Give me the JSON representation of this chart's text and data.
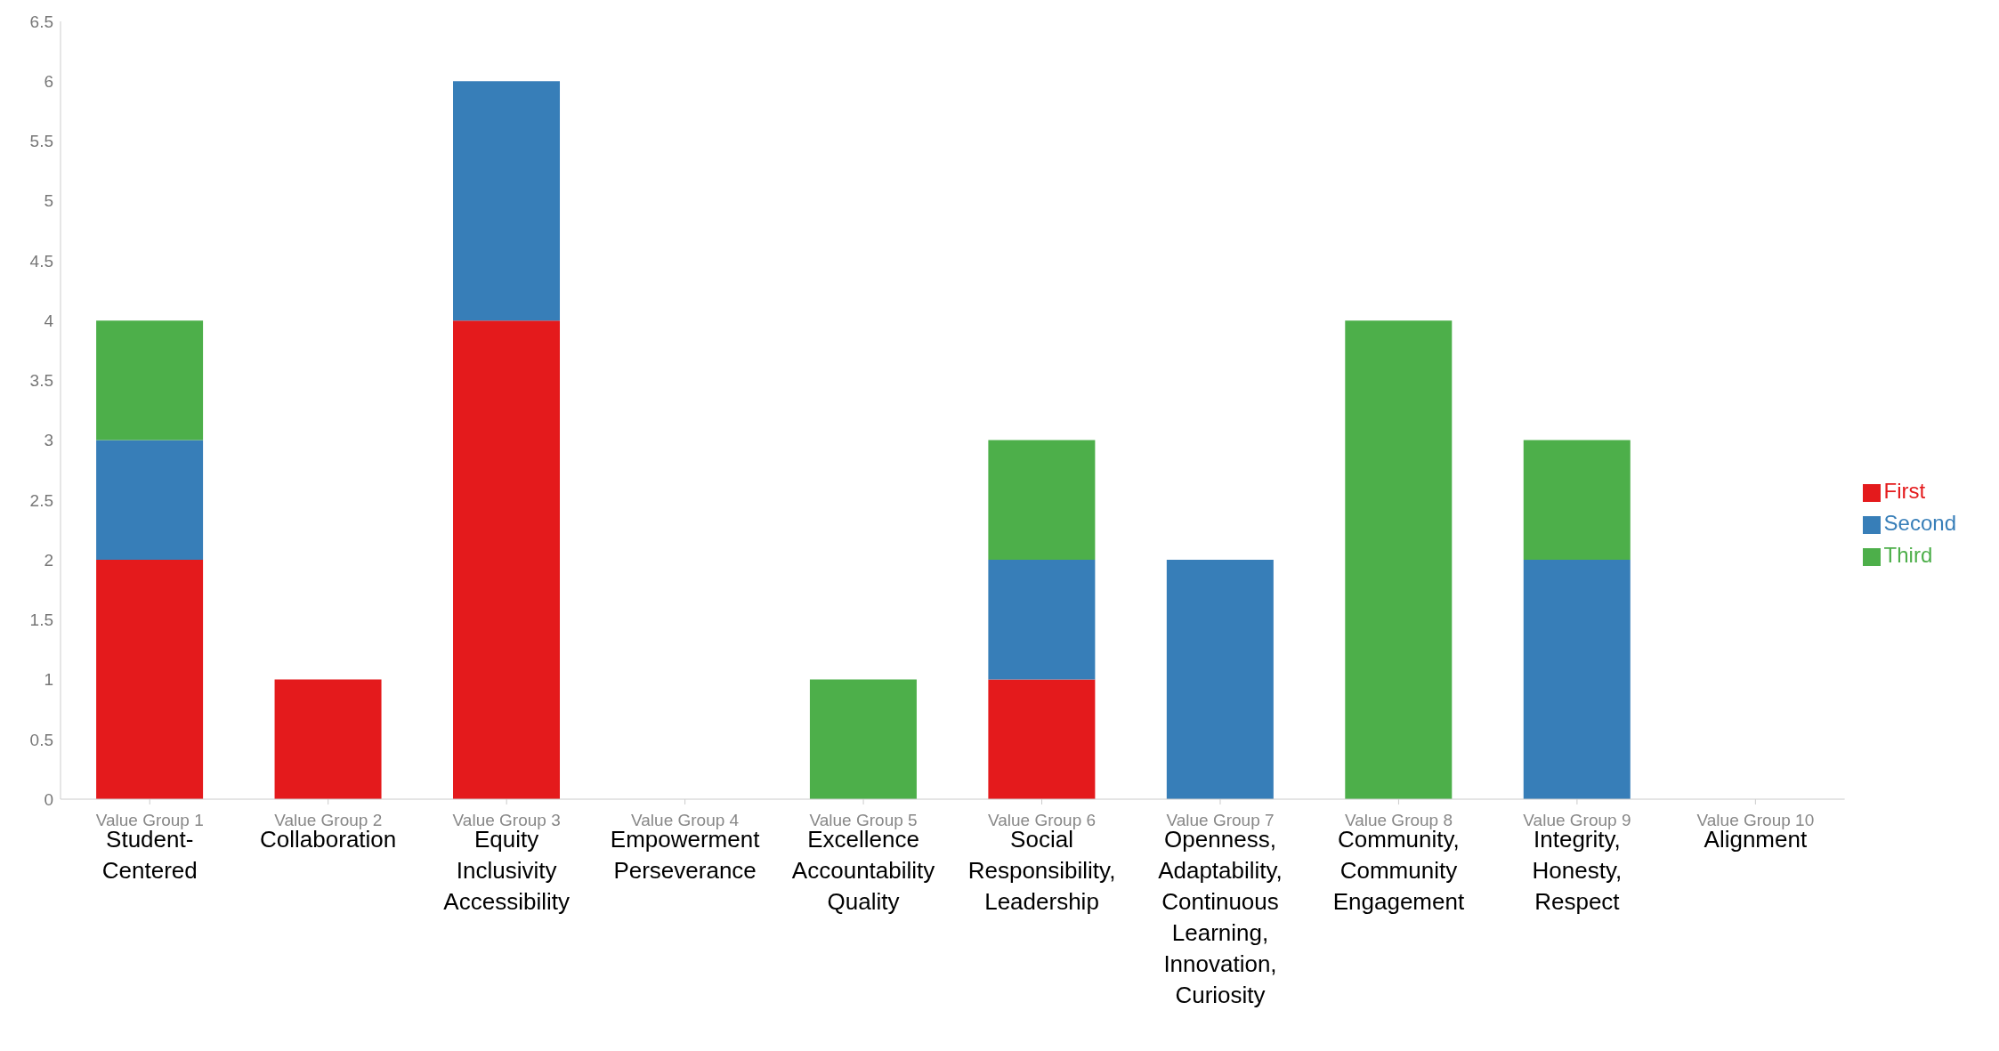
{
  "chart_data": {
    "type": "bar",
    "stacked": true,
    "categories": [
      "Value Group 1\nStudent-\nCentered",
      "Value Group 2\nCollaboration",
      "Value Group 3\nEquity\nInclusivity\nAccessibility",
      "Value Group 4\nEmpowerment\nPerseverance",
      "Value Group 5\nExcellence\nAccountability\nQuality",
      "Value Group 6\nSocial\nResponsibility,\nLeadership",
      "Value Group 7\nOpenness,\nAdaptability,\nContinuous\nLearning,\nInnovation,\nCuriosity",
      "Value Group 8\nCommunity,\nCommunity\nEngagement",
      "Value Group 9\nIntegrity,\nHonesty,\nRespect",
      "Value Group 10\nAlignment"
    ],
    "series": [
      {
        "name": "First",
        "color": "#e41a1c",
        "values": [
          2,
          1,
          4,
          0,
          0,
          1,
          0,
          0,
          0,
          0
        ]
      },
      {
        "name": "Second",
        "color": "#377eb8",
        "values": [
          1,
          0,
          2,
          0,
          0,
          1,
          2,
          0,
          2,
          0
        ]
      },
      {
        "name": "Third",
        "color": "#4daf4a",
        "values": [
          1,
          0,
          0,
          0,
          1,
          1,
          0,
          4,
          1,
          0
        ]
      }
    ],
    "ylim": [
      0,
      6.5
    ],
    "yticks": [
      0,
      0.5,
      1,
      1.5,
      2,
      2.5,
      3,
      3.5,
      4,
      4.5,
      5,
      5.5,
      6,
      6.5
    ],
    "grid": false,
    "legend": "right"
  }
}
